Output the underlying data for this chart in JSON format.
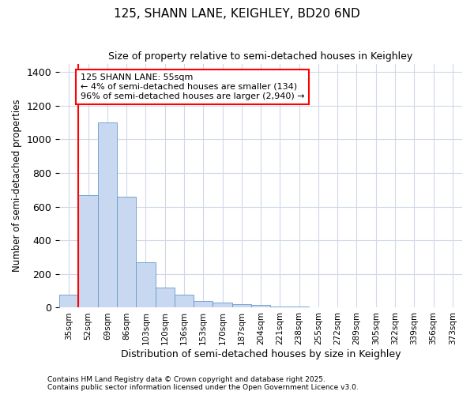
{
  "title": "125, SHANN LANE, KEIGHLEY, BD20 6ND",
  "subtitle": "Size of property relative to semi-detached houses in Keighley",
  "xlabel": "Distribution of semi-detached houses by size in Keighley",
  "ylabel": "Number of semi-detached properties",
  "bar_color": "#c8d8f0",
  "bar_edge_color": "#6699cc",
  "background_color": "#ffffff",
  "grid_color": "#d0d8e8",
  "annotation_text": "125 SHANN LANE: 55sqm\n← 4% of semi-detached houses are smaller (134)\n96% of semi-detached houses are larger (2,940) →",
  "ylim": [
    0,
    1450
  ],
  "yticks": [
    0,
    200,
    400,
    600,
    800,
    1000,
    1200,
    1400
  ],
  "categories": [
    "35sqm",
    "52sqm",
    "69sqm",
    "86sqm",
    "103sqm",
    "120sqm",
    "136sqm",
    "153sqm",
    "170sqm",
    "187sqm",
    "204sqm",
    "221sqm",
    "238sqm",
    "255sqm",
    "272sqm",
    "289sqm",
    "305sqm",
    "322sqm",
    "339sqm",
    "356sqm",
    "373sqm"
  ],
  "values": [
    75,
    670,
    1100,
    660,
    270,
    120,
    75,
    40,
    30,
    20,
    15,
    8,
    5,
    3,
    2,
    2,
    1,
    1,
    1,
    1,
    1
  ],
  "footer_line1": "Contains HM Land Registry data © Crown copyright and database right 2025.",
  "footer_line2": "Contains public sector information licensed under the Open Government Licence v3.0."
}
